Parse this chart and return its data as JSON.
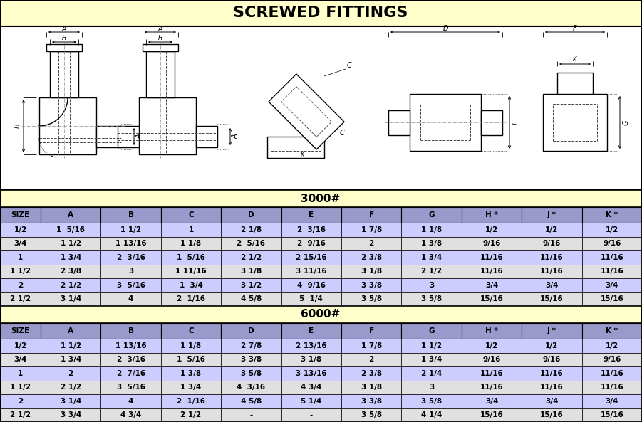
{
  "title": "SCREWED FITTINGS",
  "title_bg": "#FFFFCC",
  "diagram_bg": "#FFFFFF",
  "section_bg": "#FFFFCC",
  "col_header_bg": "#9999CC",
  "row_odd_bg": "#CCCCFF",
  "row_even_bg": "#E0E0E0",
  "columns": [
    "SIZE",
    "A",
    "B",
    "C",
    "D",
    "E",
    "F",
    "G",
    "H *",
    "J *",
    "K *"
  ],
  "section_3000": "3000#",
  "section_6000": "6000#",
  "data_3000": [
    [
      "1/2",
      "1  5/16",
      "1 1/2",
      "1",
      "2 1/8",
      "2  3/16",
      "1 7/8",
      "1 1/8",
      "1/2",
      "1/2",
      "1/2"
    ],
    [
      "3/4",
      "1 1/2",
      "1 13/16",
      "1 1/8",
      "2  5/16",
      "2  9/16",
      "2",
      "1 3/8",
      "9/16",
      "9/16",
      "9/16"
    ],
    [
      "1",
      "1 3/4",
      "2  3/16",
      "1  5/16",
      "2 1/2",
      "2 15/16",
      "2 3/8",
      "1 3/4",
      "11/16",
      "11/16",
      "11/16"
    ],
    [
      "1 1/2",
      "2 3/8",
      "3",
      "1 11/16",
      "3 1/8",
      "3 11/16",
      "3 1/8",
      "2 1/2",
      "11/16",
      "11/16",
      "11/16"
    ],
    [
      "2",
      "2 1/2",
      "3  5/16",
      "1  3/4",
      "3 1/2",
      "4  9/16",
      "3 3/8",
      "3",
      "3/4",
      "3/4",
      "3/4"
    ],
    [
      "2 1/2",
      "3 1/4",
      "4",
      "2  1/16",
      "4 5/8",
      "5  1/4",
      "3 5/8",
      "3 5/8",
      "15/16",
      "15/16",
      "15/16"
    ]
  ],
  "data_6000": [
    [
      "1/2",
      "1 1/2",
      "1 13/16",
      "1 1/8",
      "2 7/8",
      "2 13/16",
      "1 7/8",
      "1 1/2",
      "1/2",
      "1/2",
      "1/2"
    ],
    [
      "3/4",
      "1 3/4",
      "2  3/16",
      "1  5/16",
      "3 3/8",
      "3 1/8",
      "2",
      "1 3/4",
      "9/16",
      "9/16",
      "9/16"
    ],
    [
      "1",
      "2",
      "2  7/16",
      "1 3/8",
      "3 5/8",
      "3 13/16",
      "2 3/8",
      "2 1/4",
      "11/16",
      "11/16",
      "11/16"
    ],
    [
      "1 1/2",
      "2 1/2",
      "3  5/16",
      "1 3/4",
      "4  3/16",
      "4 3/4",
      "3 1/8",
      "3",
      "11/16",
      "11/16",
      "11/16"
    ],
    [
      "2",
      "3 1/4",
      "4",
      "2  1/16",
      "4 5/8",
      "5 1/4",
      "3 3/8",
      "3 5/8",
      "3/4",
      "3/4",
      "3/4"
    ],
    [
      "2 1/2",
      "3 3/4",
      "4 3/4",
      "2 1/2",
      "-",
      "-",
      "3 5/8",
      "4 1/4",
      "15/16",
      "15/16",
      "15/16"
    ]
  ]
}
